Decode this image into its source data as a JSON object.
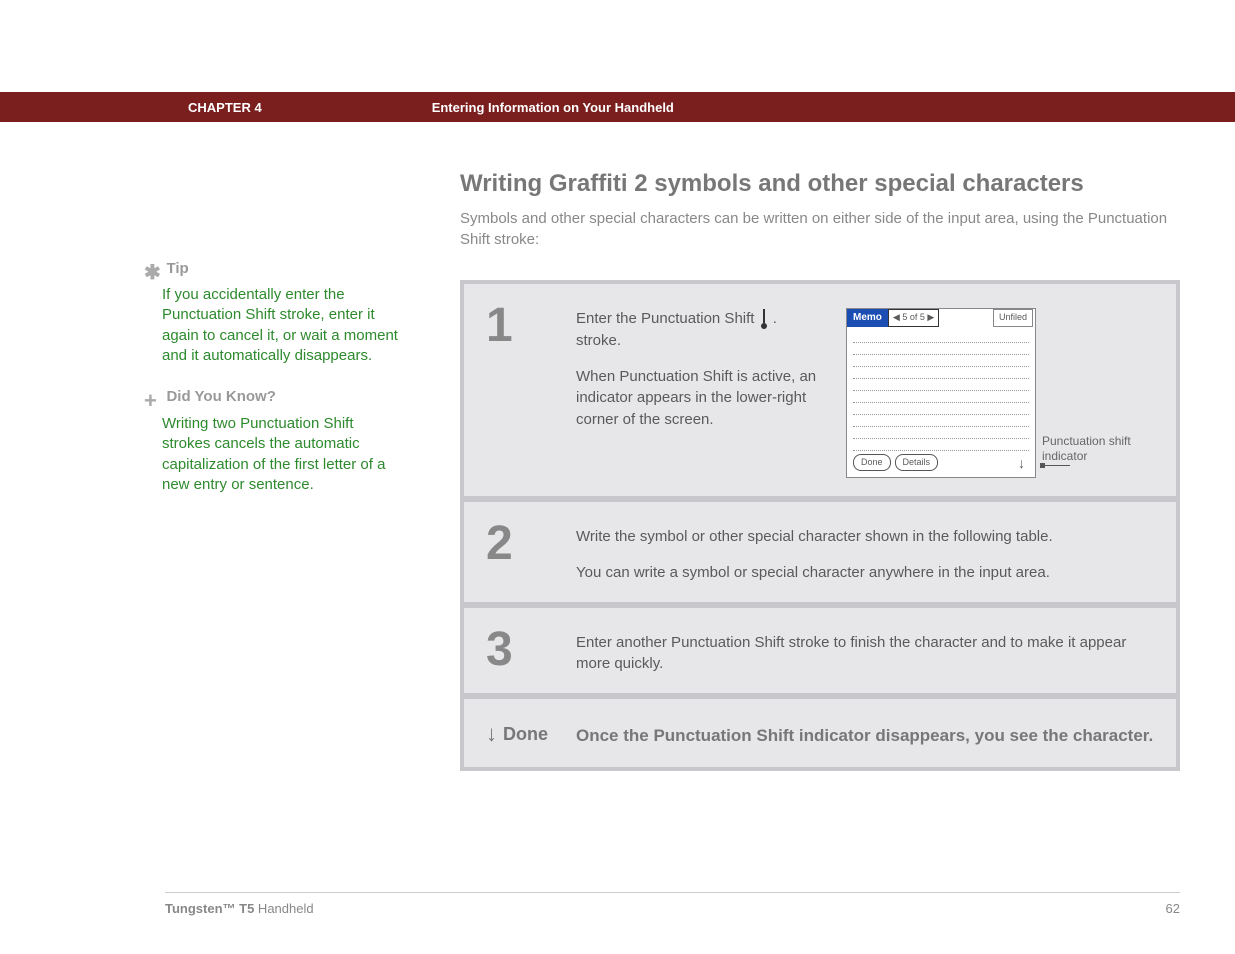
{
  "header": {
    "chapter": "CHAPTER 4",
    "title": "Entering Information on Your Handheld"
  },
  "section": {
    "title": "Writing Graffiti 2 symbols and other special characters",
    "intro": "Symbols and other special characters can be written on either side of the input area, using the Punctuation Shift stroke:"
  },
  "sidebar": {
    "tip": {
      "label": "Tip",
      "body": "If you accidentally enter the Punctuation Shift stroke, enter it again to cancel it, or wait a moment and it automatically disappears."
    },
    "dyk": {
      "label": "Did You Know?",
      "body": "Writing two Punctuation Shift strokes cancels the automatic capitalization of the first letter of a new entry or sentence."
    }
  },
  "steps": {
    "s1": {
      "num": "1",
      "p1a": "Enter the Punctuation Shift ",
      "p1b": ". stroke.",
      "p2": "When Punctuation Shift is active, an indicator appears in the lower-right corner of the screen."
    },
    "s2": {
      "num": "2",
      "p1": "Write the symbol or other special character shown in the following table.",
      "p2": "You can write a symbol or special character anywhere in the input area."
    },
    "s3": {
      "num": "3",
      "p1": "Enter another Punctuation Shift stroke to finish the character and to make it appear more quickly."
    },
    "done": {
      "label": "Done",
      "text": "Once the Punctuation Shift indicator disappears, you see the character."
    }
  },
  "mock": {
    "memo": "Memo",
    "nav": "◀  5 of 5  ▶",
    "unfiled": "Unfiled",
    "done": "Done",
    "details": "Details",
    "indicator": "↓"
  },
  "callout": {
    "text": "Punctuation shift indicator"
  },
  "footer": {
    "product_bold": "Tungsten™ T5",
    "product_rest": " Handheld",
    "page": "62"
  },
  "colors": {
    "bar": "#7a1e1e",
    "green": "#2d8a2d",
    "blue": "#1b4db3",
    "step_bg": "#e7e7ea",
    "step_outer": "#c8c8cc"
  }
}
